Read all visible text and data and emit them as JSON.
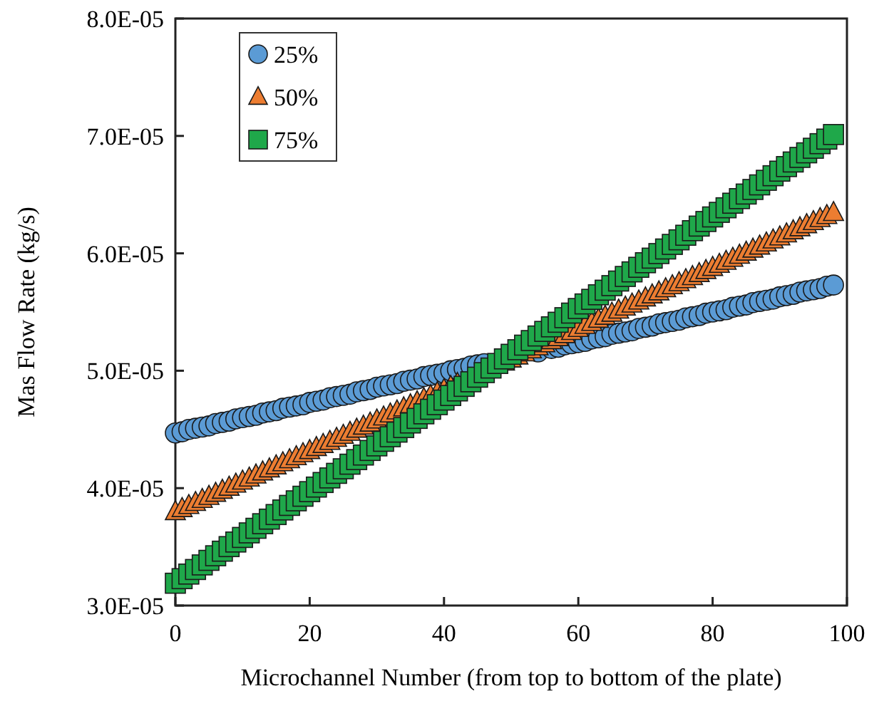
{
  "chart_data": {
    "type": "scatter",
    "xlabel": "Microchannel Number (from top to bottom of the plate)",
    "ylabel": "Mas Flow Rate (kg/s)",
    "x": [
      0,
      1,
      2,
      3,
      4,
      5,
      6,
      7,
      8,
      9,
      10,
      11,
      12,
      13,
      14,
      15,
      16,
      17,
      18,
      19,
      20,
      21,
      22,
      23,
      24,
      25,
      26,
      27,
      28,
      29,
      30,
      31,
      32,
      33,
      34,
      35,
      36,
      37,
      38,
      39,
      40,
      41,
      42,
      43,
      44,
      45,
      46,
      47,
      48,
      49,
      50,
      51,
      52,
      53,
      54,
      55,
      56,
      57,
      58,
      59,
      60,
      61,
      62,
      63,
      64,
      65,
      66,
      67,
      68,
      69,
      70,
      71,
      72,
      73,
      74,
      75,
      76,
      77,
      78,
      79,
      80,
      81,
      82,
      83,
      84,
      85,
      86,
      87,
      88,
      89,
      90,
      91,
      92,
      93,
      94,
      95,
      96,
      97,
      98
    ],
    "xlim": [
      0,
      100
    ],
    "xticks": [
      0,
      20,
      40,
      60,
      80,
      100
    ],
    "ylim": [
      3e-05,
      8e-05
    ],
    "yticks": [
      {
        "value": 3e-05,
        "label": "3.0E-05"
      },
      {
        "value": 4e-05,
        "label": "4.0E-05"
      },
      {
        "value": 5e-05,
        "label": "5.0E-05"
      },
      {
        "value": 6e-05,
        "label": "6.0E-05"
      },
      {
        "value": 7e-05,
        "label": "7.0E-05"
      },
      {
        "value": 8e-05,
        "label": "8.0E-05"
      }
    ],
    "grid": false,
    "legend": "top left",
    "series": [
      {
        "name": "25%",
        "color": "#5b9bd5",
        "marker": "circle",
        "values": [
          4.47e-05,
          4.48e-05,
          4.5e-05,
          4.51e-05,
          4.52e-05,
          4.53e-05,
          4.55e-05,
          4.56e-05,
          4.57e-05,
          4.59e-05,
          4.6e-05,
          4.61e-05,
          4.62e-05,
          4.64e-05,
          4.65e-05,
          4.66e-05,
          4.68e-05,
          4.69e-05,
          4.7e-05,
          4.71e-05,
          4.73e-05,
          4.74e-05,
          4.75e-05,
          4.77e-05,
          4.78e-05,
          4.79e-05,
          4.8e-05,
          4.82e-05,
          4.83e-05,
          4.84e-05,
          4.86e-05,
          4.87e-05,
          4.88e-05,
          4.89e-05,
          4.91e-05,
          4.92e-05,
          4.93e-05,
          4.95e-05,
          4.96e-05,
          4.97e-05,
          4.98e-05,
          5e-05,
          5.01e-05,
          5.02e-05,
          5.04e-05,
          5.05e-05,
          5.06e-05,
          null,
          null,
          null,
          null,
          null,
          null,
          null,
          5.16e-05,
          null,
          5.19e-05,
          5.2e-05,
          5.22e-05,
          5.23e-05,
          5.24e-05,
          5.25e-05,
          5.27e-05,
          5.28e-05,
          5.29e-05,
          5.31e-05,
          5.32e-05,
          5.33e-05,
          5.34e-05,
          5.36e-05,
          5.37e-05,
          5.38e-05,
          5.4e-05,
          5.41e-05,
          5.42e-05,
          5.43e-05,
          5.45e-05,
          5.46e-05,
          5.47e-05,
          5.49e-05,
          5.5e-05,
          5.51e-05,
          5.52e-05,
          5.54e-05,
          5.55e-05,
          5.56e-05,
          5.58e-05,
          5.59e-05,
          5.6e-05,
          5.61e-05,
          5.63e-05,
          5.64e-05,
          5.65e-05,
          5.67e-05,
          5.68e-05,
          5.69e-05,
          5.7e-05,
          5.72e-05,
          5.73e-05
        ]
      },
      {
        "name": "50%",
        "color": "#ed7d31",
        "marker": "triangle",
        "values": [
          3.8e-05,
          3.826e-05,
          3.852e-05,
          3.878e-05,
          3.904e-05,
          3.93e-05,
          3.956e-05,
          3.982e-05,
          4.008e-05,
          4.034e-05,
          4.06e-05,
          4.086e-05,
          4.112e-05,
          4.138e-05,
          4.164e-05,
          4.19e-05,
          4.216e-05,
          4.242e-05,
          4.268e-05,
          4.294e-05,
          4.32e-05,
          4.346e-05,
          4.372e-05,
          4.398e-05,
          4.424e-05,
          4.45e-05,
          4.476e-05,
          4.502e-05,
          4.528e-05,
          4.554e-05,
          4.58e-05,
          4.606e-05,
          4.632e-05,
          4.658e-05,
          4.684e-05,
          4.71e-05,
          4.736e-05,
          4.762e-05,
          4.788e-05,
          4.814e-05,
          4.84e-05,
          4.866e-05,
          4.892e-05,
          null,
          null,
          null,
          null,
          null,
          null,
          5.074e-05,
          5.1e-05,
          5.126e-05,
          5.152e-05,
          5.178e-05,
          5.204e-05,
          5.23e-05,
          5.256e-05,
          5.282e-05,
          5.308e-05,
          5.334e-05,
          5.36e-05,
          5.386e-05,
          5.412e-05,
          5.438e-05,
          5.464e-05,
          5.49e-05,
          5.516e-05,
          5.542e-05,
          5.568e-05,
          5.594e-05,
          5.62e-05,
          5.646e-05,
          5.672e-05,
          5.698e-05,
          5.724e-05,
          5.75e-05,
          5.776e-05,
          5.802e-05,
          5.828e-05,
          5.854e-05,
          5.88e-05,
          5.906e-05,
          5.932e-05,
          5.958e-05,
          5.984e-05,
          6.01e-05,
          6.036e-05,
          6.062e-05,
          6.088e-05,
          6.114e-05,
          6.14e-05,
          6.166e-05,
          6.192e-05,
          6.218e-05,
          6.244e-05,
          6.27e-05,
          6.296e-05,
          6.322e-05,
          6.348e-05
        ]
      },
      {
        "name": "75%",
        "color": "#1fa84a",
        "marker": "square",
        "values": [
          3.19e-05,
          3.229e-05,
          3.268e-05,
          3.307e-05,
          3.346e-05,
          3.385e-05,
          3.424e-05,
          3.463e-05,
          3.502e-05,
          3.541e-05,
          3.58e-05,
          3.619e-05,
          3.658e-05,
          3.697e-05,
          3.736e-05,
          3.775e-05,
          3.814e-05,
          3.853e-05,
          3.892e-05,
          3.931e-05,
          3.97e-05,
          4.009e-05,
          4.048e-05,
          4.087e-05,
          4.126e-05,
          4.165e-05,
          4.204e-05,
          4.243e-05,
          4.282e-05,
          4.321e-05,
          4.36e-05,
          4.399e-05,
          4.438e-05,
          4.477e-05,
          4.516e-05,
          4.555e-05,
          4.594e-05,
          4.633e-05,
          4.672e-05,
          4.711e-05,
          4.75e-05,
          4.789e-05,
          4.828e-05,
          4.867e-05,
          4.906e-05,
          4.945e-05,
          4.984e-05,
          5.023e-05,
          5.062e-05,
          5.101e-05,
          5.14e-05,
          5.179e-05,
          5.218e-05,
          5.257e-05,
          5.296e-05,
          5.335e-05,
          5.374e-05,
          5.413e-05,
          5.452e-05,
          5.491e-05,
          5.53e-05,
          5.569e-05,
          5.608e-05,
          5.647e-05,
          5.686e-05,
          5.725e-05,
          5.764e-05,
          5.803e-05,
          5.842e-05,
          5.881e-05,
          5.92e-05,
          5.959e-05,
          5.998e-05,
          6.037e-05,
          6.076e-05,
          6.115e-05,
          6.154e-05,
          6.193e-05,
          6.232e-05,
          6.271e-05,
          6.31e-05,
          6.349e-05,
          6.388e-05,
          6.427e-05,
          6.466e-05,
          6.505e-05,
          6.544e-05,
          6.583e-05,
          6.622e-05,
          6.661e-05,
          6.7e-05,
          6.739e-05,
          6.778e-05,
          6.817e-05,
          6.856e-05,
          6.895e-05,
          6.934e-05,
          6.973e-05,
          7.012e-05
        ]
      }
    ]
  }
}
